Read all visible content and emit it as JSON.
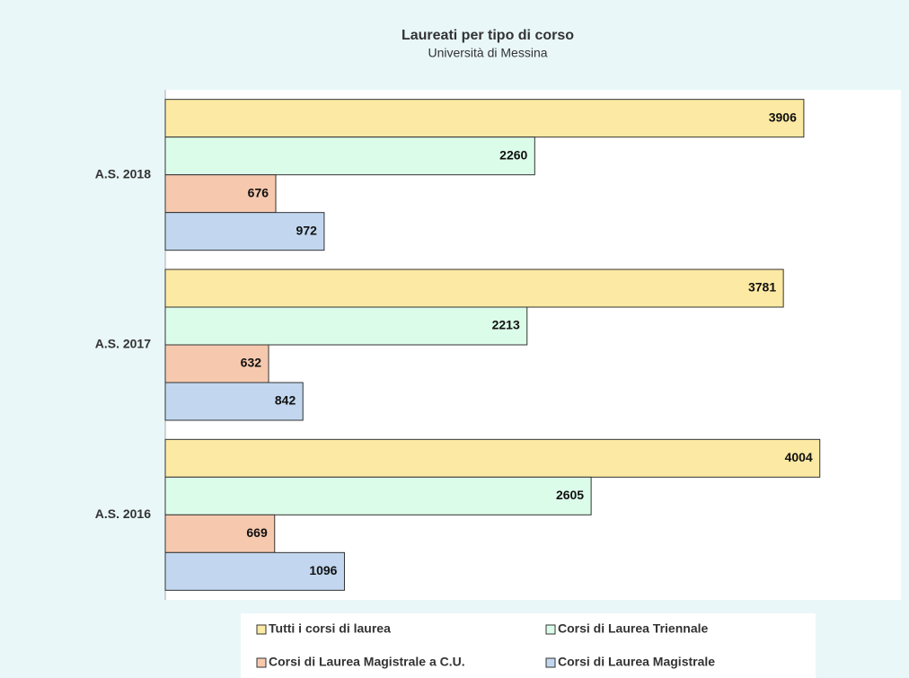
{
  "chart_data": {
    "type": "bar",
    "orientation": "horizontal",
    "title": "Laureati per tipo di corso",
    "subtitle": "Università di Messina",
    "categories": [
      "A.S. 2018",
      "A.S. 2017",
      "A.S. 2016"
    ],
    "series": [
      {
        "name": "Tutti i corsi di laurea",
        "color": "#fce9a3",
        "values": [
          3906,
          3781,
          4004
        ]
      },
      {
        "name": "Corsi di Laurea Triennale",
        "color": "#dcfcea",
        "values": [
          2260,
          2213,
          2605
        ]
      },
      {
        "name": "Corsi di Laurea Magistrale a C.U.",
        "color": "#f6c9ae",
        "values": [
          676,
          632,
          669
        ]
      },
      {
        "name": "Corsi di Laurea Magistrale",
        "color": "#c2d7ef",
        "values": [
          972,
          842,
          1096
        ]
      }
    ],
    "xlim": [
      0,
      4500
    ],
    "legend": "bottom"
  }
}
